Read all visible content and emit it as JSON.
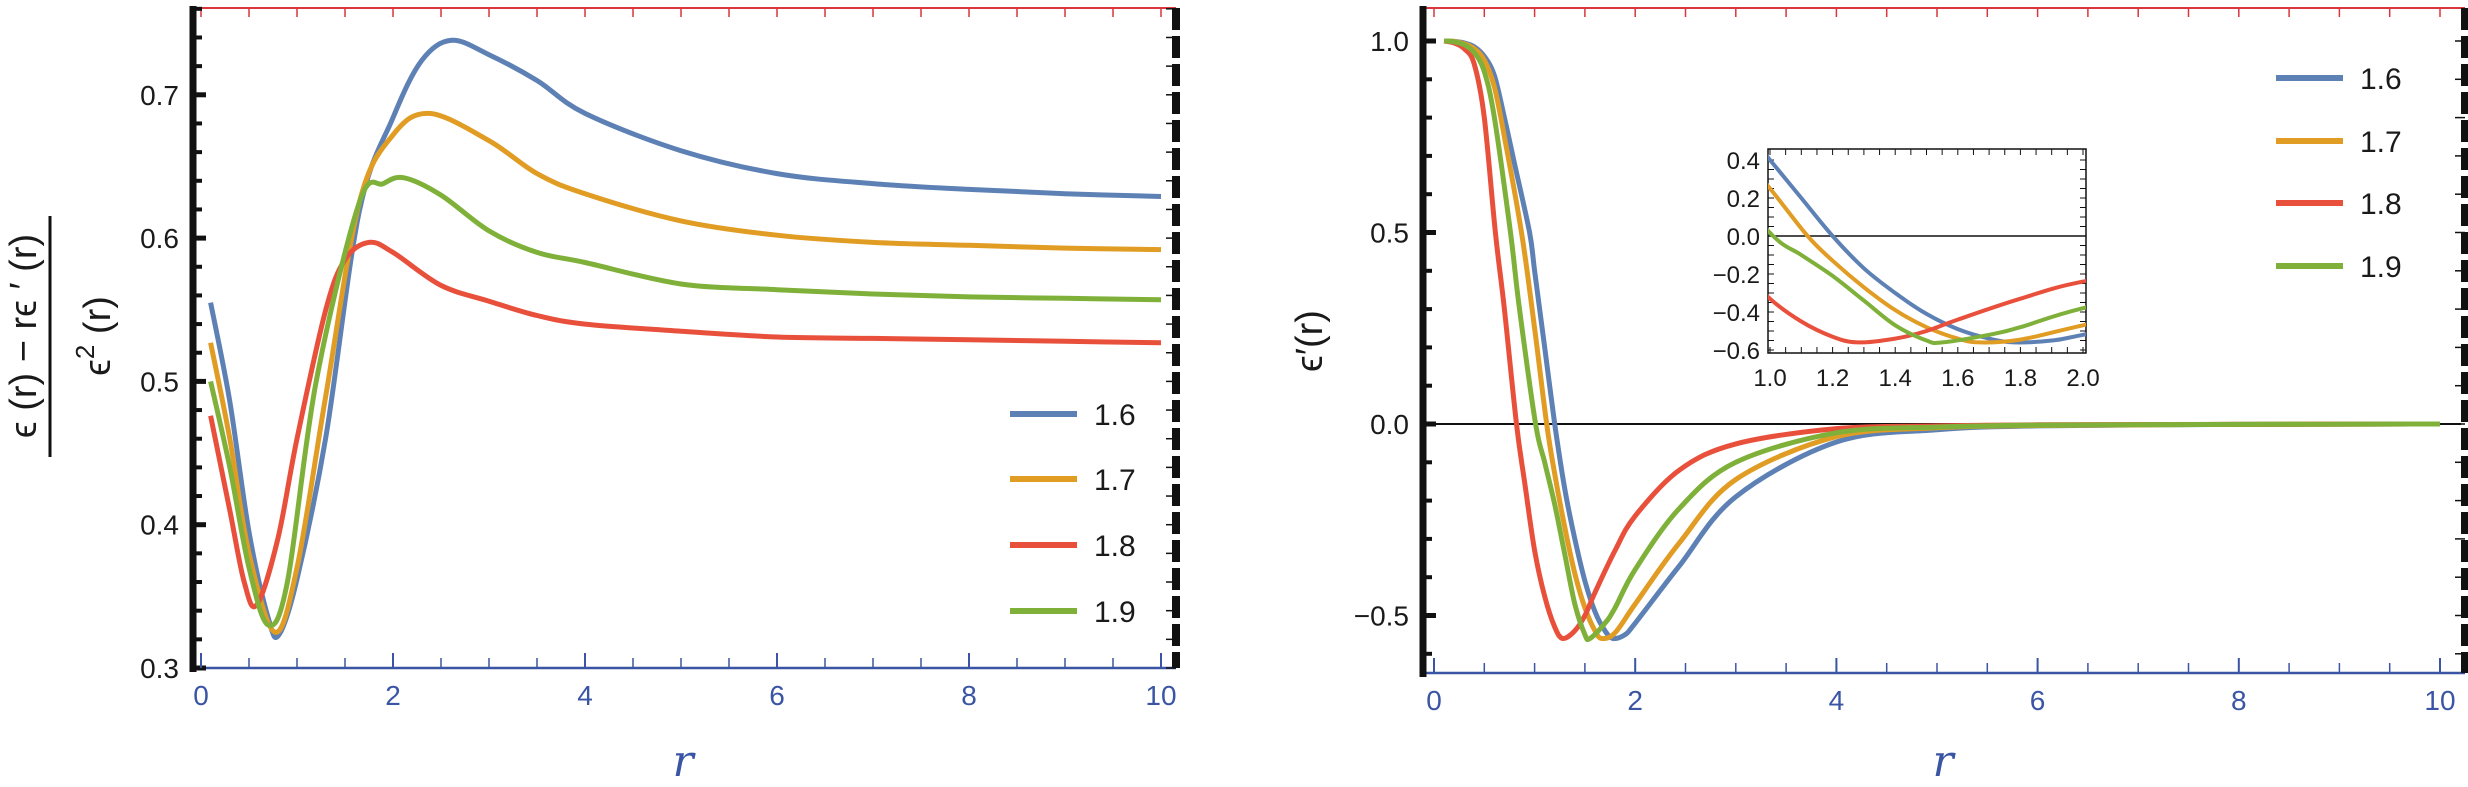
{
  "chart_data": [
    {
      "type": "line",
      "title": "",
      "xlabel": "r",
      "ylabel": {
        "numerator": "ϵ (r) − rϵ ′ (r)",
        "denominator_base": "ϵ",
        "denominator_exp": "2",
        "denominator_rest": " (r)"
      },
      "xlim": [
        0,
        10
      ],
      "ylim": [
        0.3,
        0.76
      ],
      "xticks": [
        {
          "v": 0,
          "label": "0"
        },
        {
          "v": 2,
          "label": "2"
        },
        {
          "v": 4,
          "label": "4"
        },
        {
          "v": 6,
          "label": "6"
        },
        {
          "v": 8,
          "label": "8"
        },
        {
          "v": 10,
          "label": "10"
        }
      ],
      "yticks": [
        {
          "v": 0.3,
          "label": "0.3"
        },
        {
          "v": 0.4,
          "label": "0.4"
        },
        {
          "v": 0.5,
          "label": "0.5"
        },
        {
          "v": 0.6,
          "label": "0.6"
        },
        {
          "v": 0.7,
          "label": "0.7"
        }
      ],
      "legend_position": "bottom-right",
      "series": [
        {
          "name": "1.6",
          "color": "#5e81b5",
          "x": [
            0.1,
            0.3,
            0.5,
            0.7,
            0.81,
            1.0,
            1.3,
            1.65,
            2.0,
            2.3,
            2.61,
            3.0,
            3.5,
            4,
            5,
            6,
            7,
            8,
            9,
            10
          ],
          "y": [
            0.555,
            0.486,
            0.395,
            0.335,
            0.323,
            0.362,
            0.461,
            0.619,
            0.684,
            0.724,
            0.738,
            0.728,
            0.71,
            0.687,
            0.661,
            0.645,
            0.638,
            0.634,
            0.631,
            0.629
          ]
        },
        {
          "name": "1.7",
          "color": "#e19c24",
          "x": [
            0.1,
            0.3,
            0.5,
            0.77,
            1.0,
            1.3,
            1.65,
            2.0,
            2.38,
            3,
            3.5,
            4,
            5,
            6,
            7,
            8,
            9,
            10
          ],
          "y": [
            0.527,
            0.46,
            0.38,
            0.325,
            0.37,
            0.49,
            0.625,
            0.672,
            0.687,
            0.668,
            0.645,
            0.631,
            0.612,
            0.602,
            0.597,
            0.595,
            0.593,
            0.592
          ]
        },
        {
          "name": "1.8",
          "color": "#e9503c",
          "x": [
            0.1,
            0.3,
            0.45,
            0.58,
            0.8,
            1.0,
            1.3,
            1.5,
            1.75,
            2.0,
            2.5,
            3,
            3.5,
            4,
            5,
            6,
            7,
            8,
            9,
            10
          ],
          "y": [
            0.476,
            0.41,
            0.36,
            0.344,
            0.39,
            0.46,
            0.55,
            0.585,
            0.597,
            0.59,
            0.567,
            0.556,
            0.546,
            0.54,
            0.535,
            0.531,
            0.53,
            0.529,
            0.528,
            0.527
          ]
        },
        {
          "name": "1.9",
          "color": "#7fb13a",
          "x": [
            0.1,
            0.3,
            0.5,
            0.7,
            0.9,
            1.2,
            1.65,
            1.9,
            2.12,
            2.5,
            3,
            3.5,
            4,
            5,
            6,
            7,
            8,
            9,
            10
          ],
          "y": [
            0.5,
            0.44,
            0.37,
            0.33,
            0.36,
            0.5,
            0.625,
            0.638,
            0.642,
            0.63,
            0.605,
            0.59,
            0.583,
            0.568,
            0.564,
            0.561,
            0.559,
            0.558,
            0.557
          ]
        }
      ]
    },
    {
      "type": "line",
      "title": "",
      "xlabel": "r",
      "ylabel": "ϵ′(r)",
      "xlim": [
        0,
        10
      ],
      "ylim": [
        -0.65,
        1.08
      ],
      "xticks": [
        {
          "v": 0,
          "label": "0"
        },
        {
          "v": 2,
          "label": "2"
        },
        {
          "v": 4,
          "label": "4"
        },
        {
          "v": 6,
          "label": "6"
        },
        {
          "v": 8,
          "label": "8"
        },
        {
          "v": 10,
          "label": "10"
        }
      ],
      "yticks": [
        {
          "v": -0.5,
          "label": "−0.5"
        },
        {
          "v": 0,
          "label": "0.0"
        },
        {
          "v": 0.5,
          "label": "0.5"
        },
        {
          "v": 1.0,
          "label": "1.0"
        }
      ],
      "legend_position": "top-right",
      "inset": {
        "xlim": [
          1.0,
          2.0
        ],
        "ylim": [
          -0.62,
          0.46
        ],
        "xticks": [
          {
            "v": 1.0,
            "label": "1.0"
          },
          {
            "v": 1.2,
            "label": "1.2"
          },
          {
            "v": 1.4,
            "label": "1.4"
          },
          {
            "v": 1.6,
            "label": "1.6"
          },
          {
            "v": 1.8,
            "label": "1.8"
          },
          {
            "v": 2.0,
            "label": "2.0"
          }
        ],
        "yticks": [
          {
            "v": -0.6,
            "label": "−0.6"
          },
          {
            "v": -0.4,
            "label": "−0.4"
          },
          {
            "v": -0.2,
            "label": "−0.2"
          },
          {
            "v": 0.0,
            "label": "0.0"
          },
          {
            "v": 0.2,
            "label": "0.2"
          },
          {
            "v": 0.4,
            "label": "0.4"
          }
        ]
      },
      "series": [
        {
          "name": "1.6",
          "color": "#5e81b5",
          "x": [
            0.1,
            0.2,
            0.3,
            0.4,
            0.5,
            0.6,
            0.7,
            0.8,
            0.95,
            1.0,
            1.1,
            1.2,
            1.3,
            1.4,
            1.5,
            1.6,
            1.7,
            1.78,
            1.9,
            2.0,
            2.44,
            3,
            4,
            5,
            6,
            8,
            10
          ],
          "y": [
            1.0,
            0.999,
            0.995,
            0.985,
            0.96,
            0.91,
            0.8,
            0.68,
            0.5,
            0.4,
            0.2,
            0.0,
            -0.17,
            -0.3,
            -0.41,
            -0.49,
            -0.54,
            -0.56,
            -0.55,
            -0.52,
            -0.37,
            -0.19,
            -0.047,
            -0.015,
            -0.005,
            -0.001,
            0
          ]
        },
        {
          "name": "1.7",
          "color": "#e19c24",
          "x": [
            0.1,
            0.2,
            0.3,
            0.4,
            0.5,
            0.6,
            0.7,
            0.87,
            1.0,
            1.12,
            1.2,
            1.3,
            1.4,
            1.5,
            1.6,
            1.67,
            1.8,
            2.0,
            2.44,
            3,
            4,
            5,
            6,
            8,
            10
          ],
          "y": [
            1.0,
            0.999,
            0.993,
            0.98,
            0.95,
            0.88,
            0.75,
            0.5,
            0.25,
            0.0,
            -0.13,
            -0.27,
            -0.39,
            -0.48,
            -0.54,
            -0.56,
            -0.545,
            -0.47,
            -0.31,
            -0.145,
            -0.033,
            -0.01,
            -0.004,
            -0.001,
            0
          ]
        },
        {
          "name": "1.8",
          "color": "#e9503c",
          "x": [
            0.1,
            0.2,
            0.3,
            0.4,
            0.5,
            0.61,
            0.7,
            0.82,
            0.9,
            1.0,
            1.1,
            1.2,
            1.28,
            1.4,
            1.5,
            1.6,
            1.8,
            2.0,
            2.44,
            3,
            4,
            5,
            6,
            8,
            10
          ],
          "y": [
            1.0,
            0.995,
            0.98,
            0.94,
            0.8,
            0.5,
            0.3,
            0.0,
            -0.15,
            -0.33,
            -0.45,
            -0.53,
            -0.56,
            -0.54,
            -0.5,
            -0.44,
            -0.33,
            -0.24,
            -0.12,
            -0.052,
            -0.012,
            -0.005,
            -0.002,
            -0.001,
            0
          ]
        },
        {
          "name": "1.9",
          "color": "#7fb13a",
          "x": [
            0.1,
            0.2,
            0.3,
            0.4,
            0.5,
            0.6,
            0.76,
            0.85,
            1.01,
            1.1,
            1.2,
            1.3,
            1.4,
            1.5,
            1.55,
            1.7,
            1.8,
            2.0,
            2.44,
            3,
            4,
            5,
            6,
            8,
            10
          ],
          "y": [
            1.0,
            0.998,
            0.99,
            0.97,
            0.92,
            0.8,
            0.5,
            0.3,
            0.0,
            -0.1,
            -0.21,
            -0.34,
            -0.47,
            -0.55,
            -0.56,
            -0.52,
            -0.48,
            -0.38,
            -0.22,
            -0.1,
            -0.023,
            -0.008,
            -0.003,
            -0.001,
            0
          ]
        }
      ]
    }
  ]
}
